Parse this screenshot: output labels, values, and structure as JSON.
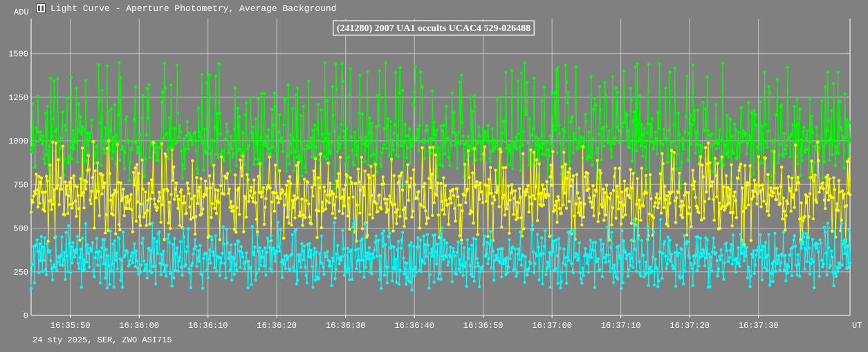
{
  "window": {
    "title": "Light Curve - Aperture Photometry, Average Background",
    "icon": "light-curve-app-icon"
  },
  "footer": "24 sty 2025, SER, ZWO ASI715",
  "chart_data": {
    "type": "line",
    "title": "(241280) 2007 UA1 occults UCAC4 529-026488",
    "ylabel": "ADU",
    "xlabel": "UT",
    "ylim": [
      0,
      1700
    ],
    "xlim": [
      "16:35:44.3",
      "16:37:43.3"
    ],
    "yticks": [
      0,
      250,
      500,
      750,
      1000,
      1250,
      1500
    ],
    "xticks": [
      "16:35:50",
      "16:36:00",
      "16:36:10",
      "16:36:20",
      "16:36:30",
      "16:36:40",
      "16:36:50",
      "16:37:00",
      "16:37:10",
      "16:37:20",
      "16:37:30"
    ],
    "grid": true,
    "legend": "none",
    "frame_count": 960,
    "series": [
      {
        "color": "#00ff00",
        "mean": 985,
        "spread": 95,
        "spikes": 0.16,
        "spike_peak": 1450,
        "dips": 0.04,
        "dip_floor": 720,
        "seed": 11
      },
      {
        "color": "#ffff00",
        "mean": 680,
        "spread": 80,
        "spikes": 0.09,
        "spike_peak": 1000,
        "dips": 0.1,
        "dip_floor": 420,
        "seed": 23
      },
      {
        "color": "#00ffff",
        "mean": 330,
        "spread": 70,
        "spikes": 0.07,
        "spike_peak": 550,
        "dips": 0.1,
        "dip_floor": 150,
        "seed": 37
      }
    ]
  }
}
